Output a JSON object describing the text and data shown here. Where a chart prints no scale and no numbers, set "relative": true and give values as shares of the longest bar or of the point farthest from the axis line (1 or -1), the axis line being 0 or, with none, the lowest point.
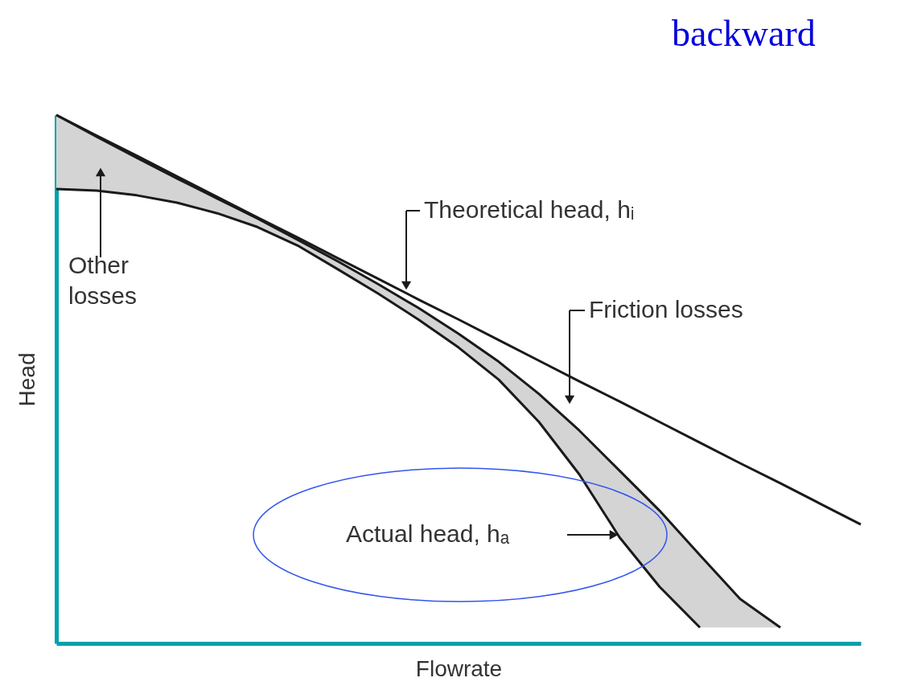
{
  "chart_data": {
    "type": "line",
    "relative": true,
    "xlabel": "Flowrate",
    "ylabel": "Head",
    "categories": [
      null,
      null,
      null,
      null,
      null,
      null,
      null,
      null,
      null,
      null,
      null,
      null,
      null,
      null,
      null,
      null,
      null,
      null,
      null,
      null,
      null
    ],
    "series": [
      {
        "color": "#1a1a1a",
        "values": [
          1.0,
          0.961,
          0.923,
          0.884,
          0.845,
          0.806,
          0.768,
          0.729,
          0.69,
          0.651,
          0.613,
          0.574,
          0.535,
          0.496,
          0.458,
          0.419,
          0.38,
          0.341,
          0.303,
          0.264,
          0.225
        ]
      },
      {
        "color": "#1a1a1a",
        "values": [
          1.0,
          0.959,
          0.919,
          0.88,
          0.842,
          0.804,
          0.764,
          0.723,
          0.68,
          0.635,
          0.586,
          0.533,
          0.472,
          0.403,
          0.327,
          0.251,
          0.167,
          0.084,
          0.03,
          null,
          null
        ],
        "lower": [
          0.86,
          0.857,
          0.848,
          0.834,
          0.814,
          0.788,
          0.753,
          0.708,
          0.662,
          0.613,
          0.56,
          0.499,
          0.419,
          0.32,
          0.201,
          0.107,
          0.03,
          0.03,
          0.03,
          null,
          null
        ],
        "upper": [
          1.0,
          0.959,
          0.919,
          0.88,
          0.842,
          0.804,
          0.764,
          0.723,
          0.68,
          0.635,
          0.586,
          0.533,
          0.472,
          0.403,
          0.327,
          0.251,
          0.167,
          0.084,
          0.03,
          null,
          null
        ]
      },
      {
        "color": "#1a1a1a",
        "values": [
          0.86,
          0.857,
          0.848,
          0.834,
          0.814,
          0.788,
          0.753,
          0.708,
          0.662,
          0.613,
          0.56,
          0.499,
          0.419,
          0.32,
          0.201,
          0.107,
          0.03,
          null,
          null,
          null,
          null
        ]
      }
    ],
    "annotations": [
      "Theoretical head, hᵢ",
      "Friction losses",
      "Other losses",
      "Actual head, hₐ",
      "backward"
    ],
    "grid": false,
    "marker": "none",
    "line_style": "solid"
  }
}
